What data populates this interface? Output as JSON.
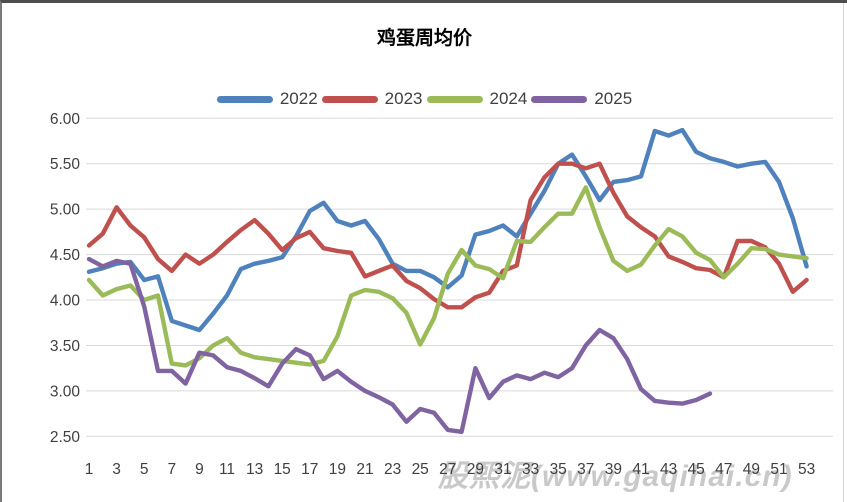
{
  "page": {
    "background": "#ffffff"
  },
  "header": {
    "title": "鸡蛋周均价"
  },
  "watermark_text": "股熙泥(www.gaqihai.cn)",
  "legend": {
    "position": "top",
    "items": [
      {
        "label": "2022",
        "color": "#4F81BD"
      },
      {
        "label": "2023",
        "color": "#C0504D"
      },
      {
        "label": "2024",
        "color": "#9BBB59"
      },
      {
        "label": "2025",
        "color": "#8064A2"
      }
    ]
  },
  "chart_data": {
    "type": "line",
    "title": "鸡蛋周均价",
    "xlabel": "",
    "ylabel": "",
    "grid": "horizontal",
    "legend_position": "top",
    "xlim": [
      1,
      53
    ],
    "ylim": [
      2.5,
      6.0
    ],
    "y_tick_step": 0.5,
    "y_ticks": [
      "6.00",
      "5.50",
      "5.00",
      "4.50",
      "4.00",
      "3.50",
      "3.00",
      "2.50"
    ],
    "x_ticks": [
      1,
      3,
      5,
      7,
      9,
      11,
      13,
      15,
      17,
      19,
      21,
      23,
      25,
      27,
      29,
      31,
      33,
      35,
      37,
      39,
      41,
      43,
      45,
      47,
      49,
      51,
      53
    ],
    "x_unit": "week",
    "gridline_color": "#d9d9d9",
    "tick_label_color": "#404040",
    "series": [
      {
        "name": "2022",
        "color": "#4F81BD",
        "values": [
          4.31,
          4.35,
          4.4,
          4.42,
          4.22,
          4.26,
          3.77,
          3.72,
          3.67,
          3.85,
          4.05,
          4.34,
          4.4,
          4.43,
          4.47,
          4.7,
          4.98,
          5.07,
          4.87,
          4.82,
          4.87,
          4.67,
          4.4,
          4.32,
          4.32,
          4.25,
          4.14,
          4.27,
          4.72,
          4.76,
          4.82,
          4.7,
          4.95,
          5.2,
          5.5,
          5.6,
          5.36,
          5.1,
          5.3,
          5.32,
          5.36,
          5.86,
          5.81,
          5.87,
          5.63,
          5.56,
          5.52,
          5.47,
          5.5,
          5.52,
          5.3,
          4.9,
          4.37
        ]
      },
      {
        "name": "2023",
        "color": "#C0504D",
        "values": [
          4.6,
          4.73,
          5.02,
          4.82,
          4.69,
          4.45,
          4.32,
          4.5,
          4.4,
          4.5,
          4.64,
          4.77,
          4.88,
          4.73,
          4.55,
          4.68,
          4.75,
          4.57,
          4.54,
          4.52,
          4.26,
          4.32,
          4.38,
          4.21,
          4.13,
          4.01,
          3.92,
          3.92,
          4.03,
          4.08,
          4.32,
          4.38,
          5.1,
          5.35,
          5.5,
          5.5,
          5.45,
          5.5,
          5.18,
          4.92,
          4.8,
          4.7,
          4.48,
          4.42,
          4.35,
          4.33,
          4.25,
          4.65,
          4.65,
          4.58,
          4.4,
          4.09,
          4.22
        ]
      },
      {
        "name": "2024",
        "color": "#9BBB59",
        "values": [
          4.22,
          4.05,
          4.12,
          4.16,
          4.0,
          4.05,
          3.3,
          3.28,
          3.36,
          3.5,
          3.58,
          3.42,
          3.37,
          3.35,
          3.33,
          3.31,
          3.29,
          3.33,
          3.6,
          4.05,
          4.11,
          4.09,
          4.02,
          3.86,
          3.51,
          3.8,
          4.29,
          4.55,
          4.38,
          4.34,
          4.24,
          4.65,
          4.64,
          4.8,
          4.95,
          4.95,
          5.24,
          4.8,
          4.43,
          4.32,
          4.39,
          4.6,
          4.78,
          4.7,
          4.52,
          4.44,
          4.25,
          4.4,
          4.57,
          4.56,
          4.5,
          4.48,
          4.46
        ]
      },
      {
        "name": "2025",
        "color": "#8064A2",
        "values": [
          4.45,
          4.37,
          4.43,
          4.4,
          3.93,
          3.22,
          3.22,
          3.08,
          3.42,
          3.39,
          3.26,
          3.22,
          3.14,
          3.05,
          3.3,
          3.46,
          3.39,
          3.13,
          3.22,
          3.1,
          3.0,
          2.93,
          2.85,
          2.66,
          2.8,
          2.76,
          2.57,
          2.55,
          3.25,
          2.92,
          3.1,
          3.17,
          3.13,
          3.2,
          3.15,
          3.25,
          3.5,
          3.67,
          3.58,
          3.35,
          3.02,
          2.89,
          2.87,
          2.86,
          2.9,
          2.97,
          null,
          null,
          null,
          null,
          null,
          null,
          null
        ]
      }
    ],
    "watermark": "股熙泥(www.gaqihai.cn)"
  }
}
